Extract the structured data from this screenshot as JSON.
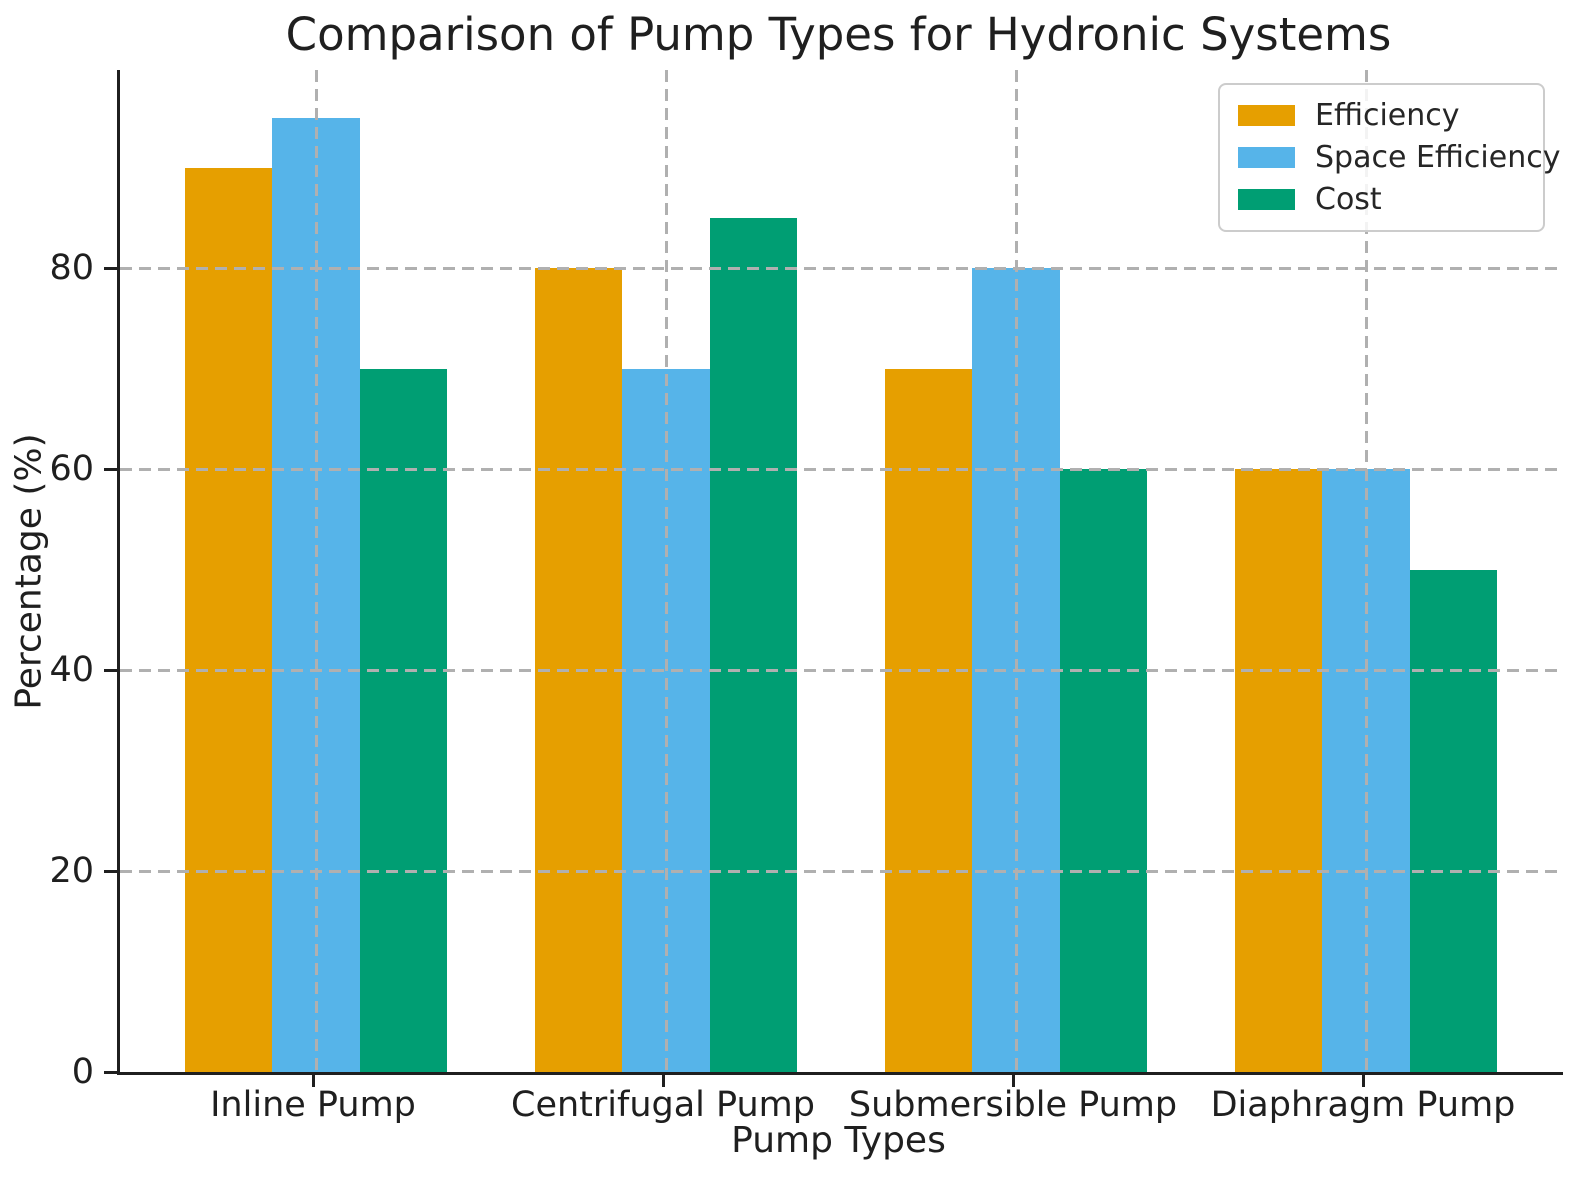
{
  "chart_data": {
    "type": "bar",
    "title": "Comparison of Pump Types for Hydronic Systems",
    "xlabel": "Pump Types",
    "ylabel": "Percentage (%)",
    "categories": [
      "Inline Pump",
      "Centrifugal Pump",
      "Submersible Pump",
      "Diaphragm Pump"
    ],
    "series": [
      {
        "name": "Efficiency",
        "color": "#E69F00",
        "values": [
          90,
          80,
          70,
          60
        ]
      },
      {
        "name": "Space Efficiency",
        "color": "#56B4E9",
        "values": [
          95,
          70,
          80,
          60
        ]
      },
      {
        "name": "Cost",
        "color": "#009E73",
        "values": [
          70,
          85,
          60,
          50
        ]
      }
    ],
    "ylim": [
      0,
      99.75
    ],
    "yticks": [
      0,
      20,
      40,
      60,
      80
    ],
    "grid": "dashed, both axes, drawn above bars",
    "grid_color": "#b0b0b0",
    "axis_color": "#1f1f1f",
    "legend_position": "top-right"
  }
}
